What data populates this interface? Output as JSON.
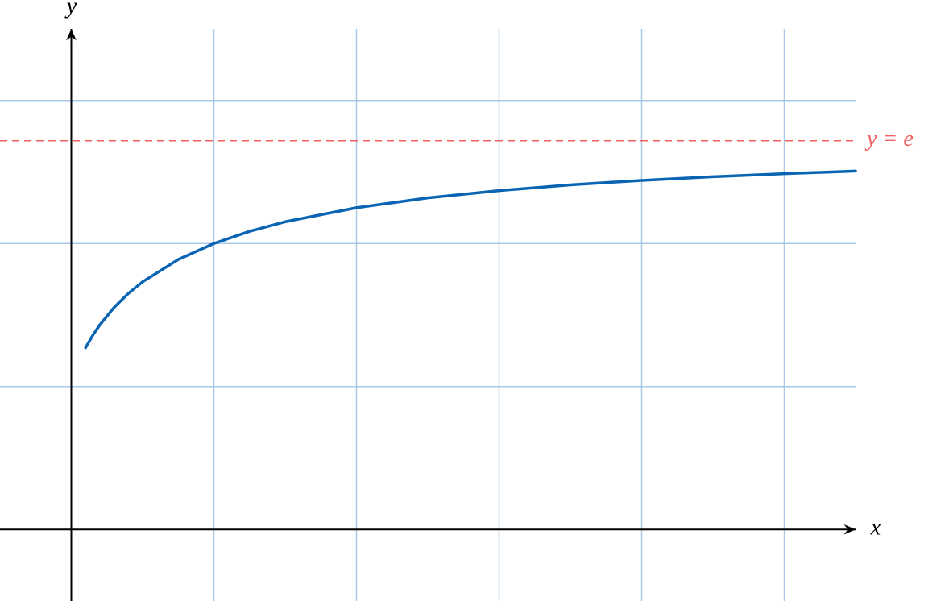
{
  "chart_data": {
    "type": "line",
    "x_label": "x",
    "y_label": "y",
    "x": [
      0.1,
      0.15,
      0.2,
      0.3,
      0.4,
      0.5,
      0.75,
      1,
      1.25,
      1.5,
      2,
      2.5,
      3,
      3.5,
      4,
      4.5,
      5,
      5.5
    ],
    "series": [
      {
        "color": "#0a64b4",
        "values": [
          1.271,
          1.357,
          1.431,
          1.553,
          1.651,
          1.732,
          1.888,
          2,
          2.085,
          2.152,
          2.25,
          2.319,
          2.37,
          2.41,
          2.441,
          2.467,
          2.488,
          2.506
        ]
      }
    ],
    "reference_line": {
      "value": 2.718,
      "label": "y = e",
      "color": "#f06060",
      "dashed": true
    },
    "xlim": [
      -0.5,
      5.5
    ],
    "ylim": [
      -0.5,
      3.5
    ],
    "xticks": [
      1,
      2,
      3,
      4,
      5
    ],
    "yticks": [
      1,
      2,
      3
    ],
    "grid": true,
    "grid_color": "#a8c8e8"
  }
}
